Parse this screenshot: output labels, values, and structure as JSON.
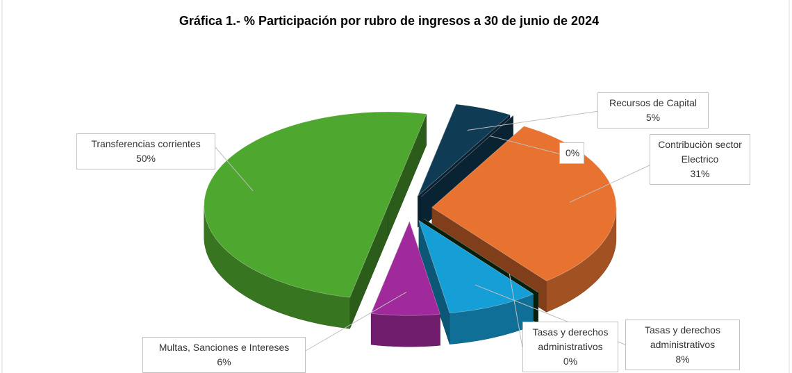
{
  "chart_data": {
    "type": "pie",
    "title": "Gráfica 1.- % Participación por rubro de ingresos a 30 de junio de  2024",
    "categories": [
      "Recursos de Capital",
      null,
      "Contribuciòn sector Electrico",
      "Tasas y derechos administrativos",
      "Tasas y derechos administrativos",
      "Multas, Sanciones e Intereses",
      "Transferencias corrientes"
    ],
    "values": [
      5,
      0,
      31,
      0,
      8,
      6,
      50
    ],
    "value_labels": [
      "5%",
      "0%",
      "31%",
      "0%",
      "8%",
      "6%",
      "50%"
    ],
    "colors": [
      "#0f3b55",
      "#12405c",
      "#e87330",
      "#0c3616",
      "#169fd6",
      "#a0299b",
      "#4ea72e"
    ]
  }
}
